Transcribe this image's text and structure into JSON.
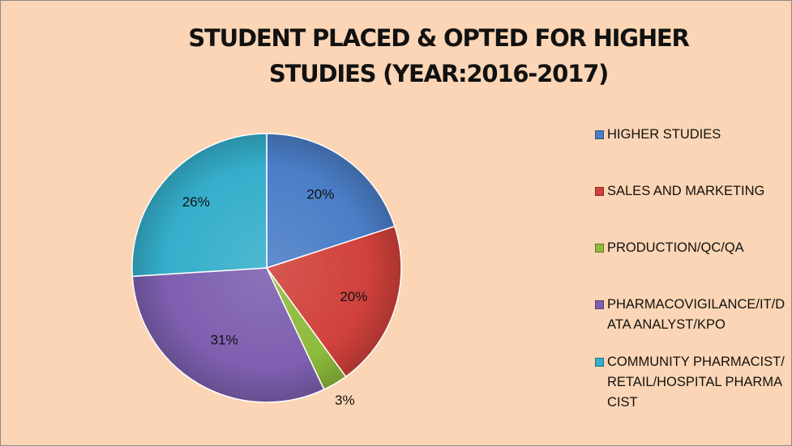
{
  "chart_data": {
    "type": "pie",
    "title_lines": [
      "STUDENT PLACED & OPTED FOR HIGHER",
      "STUDIES (YEAR:2016-2017)"
    ],
    "categories": [
      "HIGHER STUDIES",
      "SALES AND MARKETING",
      "PRODUCTION/QC/QA",
      "PHARMACOVIGILANCE/IT/DATA ANALYST/KPO",
      "COMMUNITY PHARMACIST/RETAIL/HOSPITAL PHARMACIST"
    ],
    "values": [
      20,
      20,
      3,
      31,
      26
    ],
    "data_labels": [
      "20%",
      "20%",
      "3%",
      "31%",
      "26%"
    ],
    "colors": [
      "#4a7ec7",
      "#d0413c",
      "#8dbb3b",
      "#7e5fb0",
      "#35aecb"
    ],
    "legend_position": "right",
    "start_angle": "12 o'clock",
    "direction": "clockwise"
  }
}
